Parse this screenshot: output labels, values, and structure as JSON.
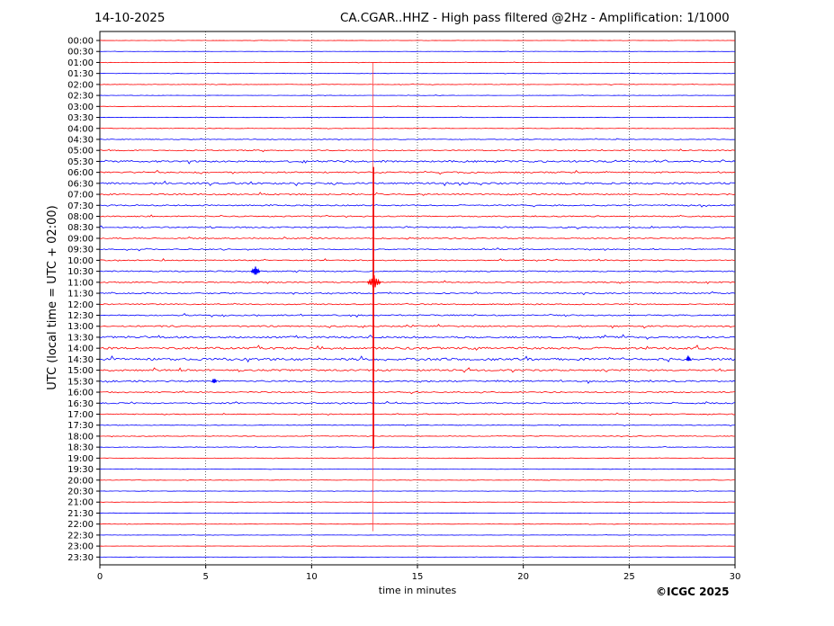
{
  "header": {
    "date": "14-10-2025",
    "title": "CA.CGAR..HHZ - High pass filtered @2Hz - Amplification: 1/1000"
  },
  "footer": {
    "copyright": "©ICGC 2025"
  },
  "chart_data": {
    "type": "line",
    "title": "CA.CGAR..HHZ - High pass filtered @2Hz - Amplification: 1/1000",
    "date": "14-10-2025",
    "xlabel": "time in minutes",
    "ylabel": "UTC (local time = UTC + 02:00)",
    "xlim": [
      0,
      30
    ],
    "xticks": [
      0,
      5,
      10,
      15,
      20,
      25,
      30
    ],
    "grid": "vertical dotted lines at x ticks",
    "row_labels": [
      "00:00",
      "00:30",
      "01:00",
      "01:30",
      "02:00",
      "02:30",
      "03:00",
      "03:30",
      "04:00",
      "04:30",
      "05:00",
      "05:30",
      "06:00",
      "06:30",
      "07:00",
      "07:30",
      "08:00",
      "08:30",
      "09:00",
      "09:30",
      "10:00",
      "10:30",
      "11:00",
      "11:30",
      "12:00",
      "12:30",
      "13:00",
      "13:30",
      "14:00",
      "14:30",
      "15:00",
      "15:30",
      "16:00",
      "16:30",
      "17:00",
      "17:30",
      "18:00",
      "18:30",
      "19:00",
      "19:30",
      "20:00",
      "20:30",
      "21:00",
      "21:30",
      "22:00",
      "22:30",
      "23:00",
      "23:30"
    ],
    "series_colors": [
      "#ff0000",
      "#0000ff"
    ],
    "noise_level": [
      0.2,
      0.2,
      0.3,
      0.3,
      0.4,
      0.3,
      0.4,
      0.4,
      0.4,
      0.6,
      0.9,
      1.6,
      1.3,
      1.5,
      1.2,
      1.1,
      1.0,
      1.1,
      0.9,
      0.9,
      1.0,
      1.0,
      1.0,
      1.0,
      1.0,
      1.1,
      1.2,
      1.6,
      1.9,
      2.0,
      1.5,
      1.3,
      1.0,
      1.1,
      0.8,
      0.6,
      0.6,
      0.4,
      0.4,
      0.4,
      0.4,
      0.3,
      0.3,
      0.3,
      0.3,
      0.3,
      0.2,
      0.2
    ],
    "events": [
      {
        "row": "10:30",
        "x": 7.35,
        "amplitude": 4
      },
      {
        "row": "11:00",
        "x": 12.95,
        "amplitude": 6
      },
      {
        "row": "15:30",
        "x": 5.4,
        "amplitude": 2
      },
      {
        "row": "14:30",
        "x": 27.8,
        "amplitude": 2
      }
    ],
    "long_trace": {
      "x": 12.9,
      "from_row": "01:00",
      "to_row": "22:00"
    }
  }
}
